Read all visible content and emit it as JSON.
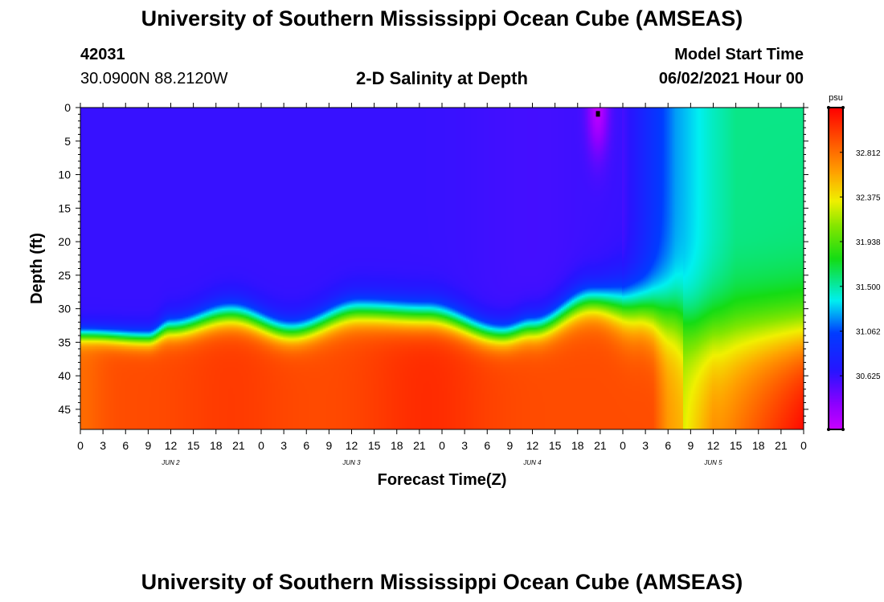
{
  "header": {
    "title_top": "University of Southern Mississippi Ocean Cube (AMSEAS)",
    "title_bottom": "University of Southern Mississippi Ocean Cube (AMSEAS)",
    "station_id": "42031",
    "station_coords": "30.0900N  88.2120W",
    "plot_title": "2-D Salinity at Depth",
    "model_start_label": "Model Start Time",
    "model_start_value": "06/02/2021 Hour 00"
  },
  "chart_data": {
    "type": "heatmap",
    "title": "2-D Salinity at Depth",
    "xlabel": "Forecast Time(Z)",
    "ylabel": "Depth (ft)",
    "x_hours": [
      0,
      96
    ],
    "ylim": [
      0,
      48
    ],
    "x_ticks": [
      "0",
      "3",
      "6",
      "9",
      "12",
      "15",
      "18",
      "21",
      "0",
      "3",
      "6",
      "9",
      "12",
      "15",
      "18",
      "21",
      "0",
      "3",
      "6",
      "9",
      "12",
      "15",
      "18",
      "21",
      "0",
      "3",
      "6",
      "9",
      "12",
      "15",
      "18",
      "21",
      "0"
    ],
    "y_ticks": [
      0,
      5,
      10,
      15,
      20,
      25,
      30,
      35,
      40,
      45
    ],
    "day_labels": [
      {
        "hour": 12,
        "label": "JUN 2"
      },
      {
        "hour": 36,
        "label": "JUN 3"
      },
      {
        "hour": 60,
        "label": "JUN 4"
      },
      {
        "hour": 84,
        "label": "JUN 5"
      }
    ],
    "colorbar": {
      "unit": "psu",
      "vmin": 30.1,
      "vmax": 33.25,
      "ticks": [
        "32.812",
        "32.375",
        "31.938",
        "31.500",
        "31.062",
        "30.625"
      ],
      "tick_values": [
        32.812,
        32.375,
        31.938,
        31.5,
        31.062,
        30.625
      ]
    },
    "halocline": {
      "hours": [
        0,
        9,
        12,
        20,
        28,
        37,
        46,
        56,
        60,
        68,
        74,
        78,
        82,
        90,
        96
      ],
      "depth_ft": [
        34,
        34.5,
        33,
        31,
        33.5,
        30.5,
        31,
        34,
        33,
        29,
        30,
        31,
        33,
        33,
        33
      ],
      "width_ft": [
        1.5,
        1.6,
        2.0,
        2.4,
        2.2,
        2.6,
        2.6,
        2.2,
        2.4,
        3.0,
        4.5,
        6.0,
        6.0,
        6.0,
        6.0
      ]
    },
    "marker": {
      "hour": 68.7,
      "depth_ft": 1
    }
  }
}
